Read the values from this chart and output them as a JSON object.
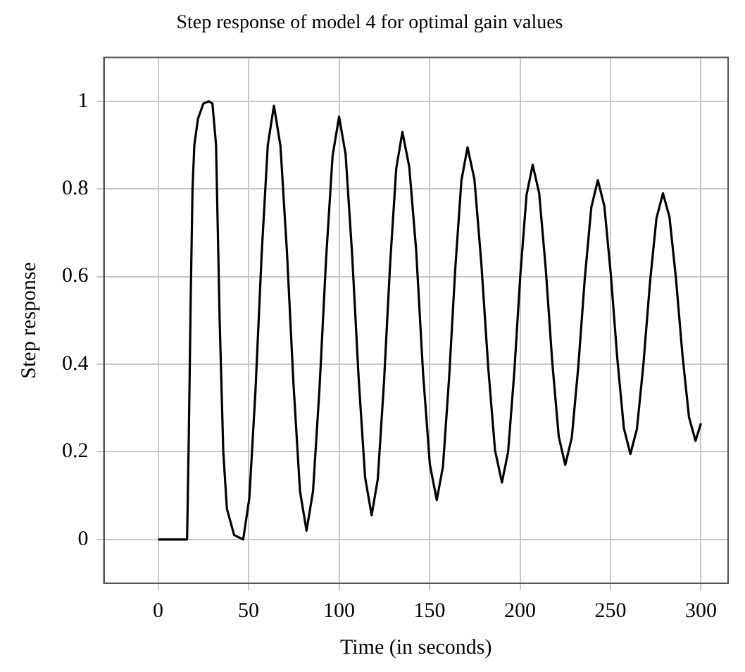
{
  "chart_data": {
    "type": "line",
    "title": "Step response of model 4 for optimal gain values",
    "xlabel": "Time (in seconds)",
    "ylabel": "Step response",
    "x": [
      0,
      16,
      17,
      18,
      19,
      20,
      22,
      25,
      28,
      30,
      32,
      34,
      36,
      38,
      42,
      47,
      50.4,
      53.8,
      57.2,
      60.6,
      64,
      67.6,
      71.2,
      74.8,
      78.4,
      82,
      85.6,
      89.2,
      92.8,
      96.4,
      100,
      103.6,
      107.2,
      110.8,
      114.4,
      118,
      121.4,
      124.8,
      128.2,
      131.6,
      135,
      138.8,
      142.6,
      146.4,
      150.2,
      154,
      157.4,
      160.8,
      164.2,
      167.6,
      171,
      174.8,
      178.6,
      182.4,
      186.2,
      190,
      193.4,
      196.8,
      200.2,
      203.6,
      207,
      210.6,
      214.2,
      217.8,
      221.4,
      225,
      228.6,
      232.2,
      235.8,
      239.4,
      243,
      246.6,
      250.2,
      253.8,
      257.4,
      261,
      264.6,
      268.2,
      271.8,
      275.4,
      279,
      282.6,
      286.2,
      289.8,
      293.4,
      297,
      300
    ],
    "series": [
      {
        "color": "#000000",
        "values": [
          0,
          0,
          0.25,
          0.55,
          0.8,
          0.9,
          0.96,
          0.995,
          1,
          0.995,
          0.9,
          0.5,
          0.2,
          0.07,
          0.01,
          0,
          0.094,
          0.34,
          0.65,
          0.9,
          0.99,
          0.898,
          0.655,
          0.355,
          0.11,
          0.02,
          0.11,
          0.346,
          0.639,
          0.875,
          0.965,
          0.879,
          0.651,
          0.369,
          0.141,
          0.055,
          0.138,
          0.357,
          0.628,
          0.847,
          0.93,
          0.85,
          0.66,
          0.38,
          0.17,
          0.09,
          0.166,
          0.368,
          0.617,
          0.819,
          0.895,
          0.822,
          0.631,
          0.394,
          0.203,
          0.13,
          0.199,
          0.38,
          0.605,
          0.786,
          0.855,
          0.79,
          0.619,
          0.406,
          0.235,
          0.17,
          0.232,
          0.394,
          0.596,
          0.758,
          0.82,
          0.761,
          0.604,
          0.411,
          0.254,
          0.195,
          0.252,
          0.4,
          0.585,
          0.733,
          0.79,
          0.736,
          0.595,
          0.42,
          0.279,
          0.225,
          0.265
        ]
      }
    ],
    "xlim": [
      -30,
      315
    ],
    "ylim": [
      -0.1,
      1.1
    ],
    "xticks": [
      0,
      50,
      100,
      150,
      200,
      250,
      300
    ],
    "yticks": [
      0,
      0.2,
      0.4,
      0.6,
      0.8,
      1
    ],
    "grid": true,
    "legend": false,
    "marker": "none",
    "line_style": "solid"
  }
}
